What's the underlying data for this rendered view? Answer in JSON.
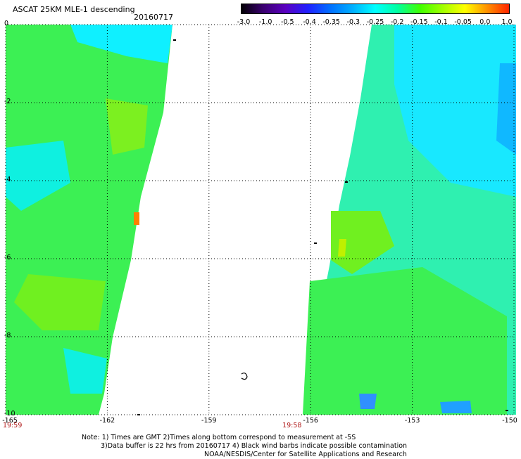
{
  "header": {
    "title": "ASCAT 25KM MLE-1 descending",
    "date": "20160717"
  },
  "colorbar": {
    "labels": [
      "-3.0",
      "-1.0",
      "-0.5",
      "-0.4",
      "-0.35",
      "-0.3",
      "-0.25",
      "-0.2",
      "-0.15",
      "-0.1",
      "-0.05",
      "0.0",
      "1.0"
    ],
    "colors": [
      "#000000",
      "#3a0070",
      "#5a00c0",
      "#2020ff",
      "#0070ff",
      "#00b0ff",
      "#00ffff",
      "#00ffa0",
      "#40ff00",
      "#a0ff00",
      "#ffff00",
      "#ff9000",
      "#ff2000"
    ]
  },
  "map": {
    "x_labels": [
      "-165",
      "-162",
      "-159",
      "-156",
      "-153",
      "-150"
    ],
    "x_values": [
      -165,
      -162,
      -159,
      -156,
      -153,
      -150
    ],
    "y_labels": [
      "0",
      "-2",
      "-4",
      "-6",
      "-8",
      "-10"
    ],
    "y_values": [
      0,
      -2,
      -4,
      -6,
      -8,
      -10
    ],
    "lon_range": [
      -165,
      -150
    ],
    "lat_range": [
      -10,
      0
    ],
    "times": [
      {
        "label": "19:59",
        "lon": -165
      },
      {
        "label": "19:58",
        "lon": -157
      }
    ]
  },
  "footer": {
    "line1": "Note: 1) Times are GMT 2)Times along bottom correspond to measurement at -5S",
    "line2": "3)Data buffer is 22 hrs from 20160717 4) Black wind barbs indicate possible contamination",
    "line3": "NOAA/NESDIS/Center for Satellite Applications and Research"
  }
}
